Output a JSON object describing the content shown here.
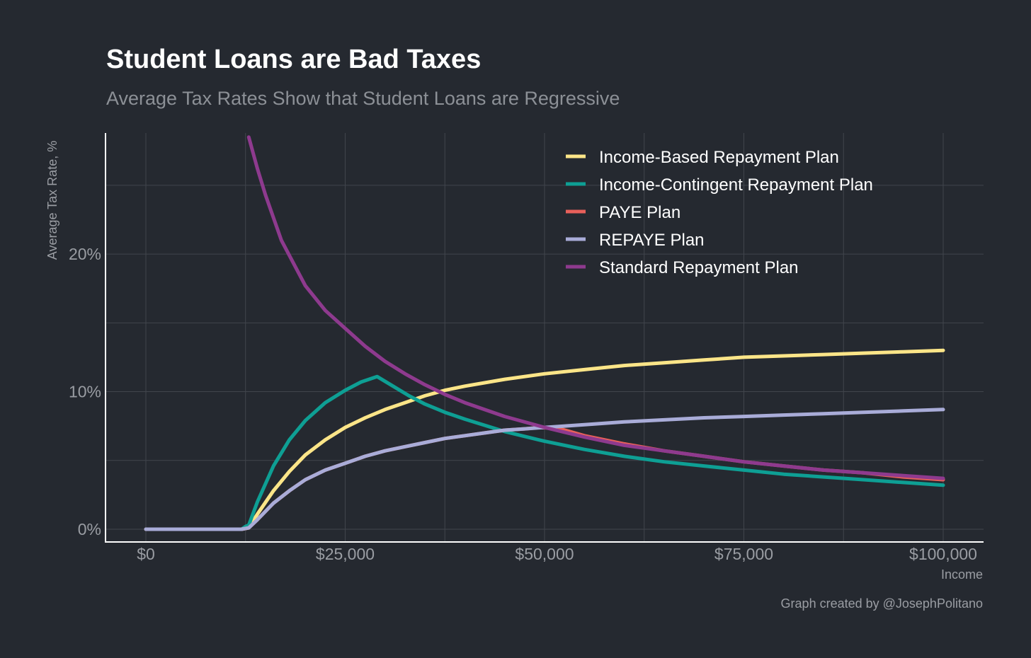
{
  "chart_data": {
    "type": "line",
    "title": "Student Loans are Bad Taxes",
    "subtitle": "Average Tax Rates Show that Student Loans are Regressive",
    "xlabel": "Income",
    "ylabel": "Average Tax Rate, %",
    "caption": "Graph created by @JosephPolitano",
    "xlim": [
      0,
      100000
    ],
    "ylim": [
      0,
      28.8
    ],
    "x_ticks": [
      0,
      25000,
      50000,
      75000,
      100000
    ],
    "x_tick_labels": [
      "$0",
      "$25,000",
      "$50,000",
      "$75,000",
      "$100,000"
    ],
    "y_ticks": [
      0,
      10,
      20
    ],
    "y_tick_labels": [
      "0%",
      "10%",
      "20%"
    ],
    "grid": true,
    "legend_position": "top-right",
    "series": [
      {
        "name": "Income-Based Repayment Plan",
        "color": "#fce588",
        "x": [
          0,
          12000,
          12900,
          14000,
          16000,
          18000,
          20000,
          22500,
          25000,
          27500,
          30000,
          32500,
          35000,
          37500,
          40000,
          45000,
          50000,
          55000,
          60000,
          65000,
          70000,
          75000,
          80000,
          85000,
          90000,
          95000,
          100000
        ],
        "y": [
          0,
          0,
          0.1,
          1.1,
          2.8,
          4.2,
          5.4,
          6.5,
          7.4,
          8.1,
          8.7,
          9.2,
          9.7,
          10.1,
          10.4,
          10.9,
          11.3,
          11.6,
          11.9,
          12.1,
          12.3,
          12.5,
          12.6,
          12.7,
          12.8,
          12.9,
          13.0
        ]
      },
      {
        "name": "Income-Contingent Repayment Plan",
        "color": "#0e9f94",
        "x": [
          0,
          12000,
          12500,
          12900,
          14000,
          16000,
          18000,
          20000,
          22500,
          25000,
          27000,
          29000,
          31000,
          33000,
          35000,
          37500,
          40000,
          45000,
          50000,
          55000,
          60000,
          65000,
          70000,
          75000,
          80000,
          85000,
          90000,
          95000,
          100000
        ],
        "y": [
          0,
          0,
          0.2,
          0.3,
          2.0,
          4.6,
          6.5,
          7.9,
          9.2,
          10.1,
          10.7,
          11.1,
          10.4,
          9.7,
          9.1,
          8.5,
          8.0,
          7.1,
          6.4,
          5.8,
          5.3,
          4.9,
          4.6,
          4.3,
          4.0,
          3.8,
          3.6,
          3.4,
          3.2
        ]
      },
      {
        "name": "PAYE Plan",
        "color": "#e8605a",
        "x": [
          0,
          12000,
          12900,
          14000,
          16000,
          18000,
          20000,
          22500,
          25000,
          27500,
          30000,
          32500,
          35000,
          37500,
          40000,
          42500,
          45000,
          47500,
          49500,
          52000,
          55000,
          60000,
          65000,
          70000,
          75000,
          80000,
          85000,
          90000,
          95000,
          100000
        ],
        "y": [
          0,
          0,
          0.1,
          0.7,
          1.9,
          2.8,
          3.6,
          4.3,
          4.8,
          5.3,
          5.7,
          6.0,
          6.3,
          6.6,
          6.8,
          7.0,
          7.2,
          7.3,
          7.4,
          7.3,
          6.8,
          6.2,
          5.7,
          5.3,
          4.9,
          4.6,
          4.3,
          4.1,
          3.8,
          3.6
        ]
      },
      {
        "name": "REPAYE Plan",
        "color": "#a9acd8",
        "x": [
          0,
          12000,
          12900,
          14000,
          16000,
          18000,
          20000,
          22500,
          25000,
          27500,
          30000,
          32500,
          35000,
          37500,
          40000,
          42500,
          45000,
          47500,
          50000,
          55000,
          60000,
          65000,
          70000,
          75000,
          80000,
          85000,
          90000,
          95000,
          100000
        ],
        "y": [
          0,
          0,
          0.1,
          0.7,
          1.9,
          2.8,
          3.6,
          4.3,
          4.8,
          5.3,
          5.7,
          6.0,
          6.3,
          6.6,
          6.8,
          7.0,
          7.2,
          7.3,
          7.4,
          7.6,
          7.8,
          7.95,
          8.1,
          8.2,
          8.3,
          8.4,
          8.5,
          8.6,
          8.7
        ]
      },
      {
        "name": "Standard Repayment Plan",
        "color": "#8e3a8e",
        "x": [
          12900,
          14000,
          15000,
          17000,
          20000,
          22500,
          25000,
          27500,
          30000,
          32500,
          35000,
          37500,
          40000,
          45000,
          50000,
          55000,
          60000,
          65000,
          70000,
          75000,
          80000,
          85000,
          90000,
          95000,
          100000
        ],
        "y": [
          28.5,
          26.2,
          24.3,
          21.0,
          17.7,
          15.9,
          14.6,
          13.3,
          12.2,
          11.3,
          10.5,
          9.8,
          9.2,
          8.2,
          7.4,
          6.7,
          6.1,
          5.7,
          5.3,
          4.9,
          4.6,
          4.3,
          4.1,
          3.9,
          3.7
        ]
      }
    ]
  }
}
